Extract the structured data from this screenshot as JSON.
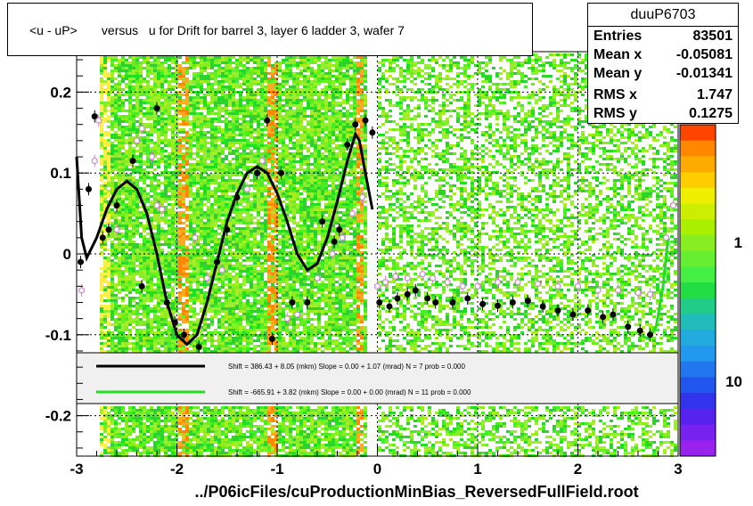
{
  "title": "<u - uP>       versus   u for Drift for barrel 3, layer 6 ladder 3, wafer 7",
  "stats": {
    "name": "duuP6703",
    "rows": [
      {
        "label": "Entries",
        "value": "83501"
      },
      {
        "label": "Mean x",
        "value": "-0.05081"
      },
      {
        "label": "Mean y",
        "value": "-0.01341"
      },
      {
        "label": "RMS x",
        "value": "1.747"
      },
      {
        "label": "RMS y",
        "value": "0.1275"
      }
    ]
  },
  "footer": "../P06icFiles/cuProductionMinBias_ReversedFullField.root",
  "chart_data": {
    "type": "scatter",
    "xlim": [
      -3,
      3
    ],
    "ylim": [
      -0.25,
      0.25
    ],
    "xticks": [
      "-3",
      "-2",
      "-1",
      "0",
      "1",
      "2",
      "3"
    ],
    "yticks": [
      "0.2",
      "0.1",
      "0",
      "-0.1",
      "-0.2"
    ],
    "palette_labels": [
      "1",
      "10"
    ],
    "legend": [
      {
        "text": "Shift =   386.43 + 8.05 (mkm) Slope =     0.00 + 1.07 (mrad)  N = 7 prob = 0.000",
        "color": "#000000"
      },
      {
        "text": "Shift =  -665.91 + 3.82 (mkm) Slope =     0.00 + 0.00 (mrad)  N = 11 prob = 0.000",
        "color": "#22dd22"
      }
    ],
    "series": [
      {
        "marker": "filled-circle",
        "color": "#000000",
        "points": [
          [
            -2.96,
            -0.01
          ],
          [
            -2.88,
            0.08
          ],
          [
            -2.82,
            0.17
          ],
          [
            -2.74,
            0.02
          ],
          [
            -2.68,
            0.03
          ],
          [
            -2.6,
            0.06
          ],
          [
            -2.44,
            0.115
          ],
          [
            -2.35,
            -0.04
          ],
          [
            -2.2,
            0.18
          ],
          [
            -2.1,
            -0.06
          ],
          [
            -2.02,
            -0.085
          ],
          [
            -1.93,
            -0.1
          ],
          [
            -1.78,
            -0.115
          ],
          [
            -1.6,
            -0.01
          ],
          [
            -1.5,
            0.03
          ],
          [
            -1.4,
            0.07
          ],
          [
            -1.2,
            0.1
          ],
          [
            -1.1,
            0.165
          ],
          [
            -1.05,
            -0.105
          ],
          [
            -0.96,
            0.1
          ],
          [
            -0.85,
            -0.06
          ],
          [
            -0.7,
            -0.06
          ],
          [
            -0.55,
            0.04
          ],
          [
            -0.43,
            0.015
          ],
          [
            -0.38,
            0.03
          ],
          [
            -0.3,
            0.135
          ],
          [
            -0.22,
            0.16
          ],
          [
            -0.12,
            0.165
          ],
          [
            -0.05,
            0.15
          ],
          [
            0.02,
            -0.06
          ],
          [
            0.12,
            -0.065
          ],
          [
            0.2,
            -0.055
          ],
          [
            0.3,
            -0.05
          ],
          [
            0.38,
            -0.045
          ],
          [
            0.5,
            -0.055
          ],
          [
            0.58,
            -0.06
          ],
          [
            0.75,
            -0.06
          ],
          [
            0.9,
            -0.055
          ],
          [
            1.05,
            -0.062
          ],
          [
            1.2,
            -0.064
          ],
          [
            1.35,
            -0.06
          ],
          [
            1.5,
            -0.058
          ],
          [
            1.65,
            -0.065
          ],
          [
            1.8,
            -0.07
          ],
          [
            1.95,
            -0.075
          ],
          [
            2.1,
            -0.07
          ],
          [
            2.25,
            -0.078
          ],
          [
            2.35,
            -0.075
          ],
          [
            2.5,
            -0.09
          ],
          [
            2.62,
            -0.095
          ],
          [
            2.72,
            -0.1
          ]
        ]
      },
      {
        "marker": "open-circle",
        "color": "#cc88cc",
        "points": [
          [
            -2.95,
            -0.045
          ],
          [
            -2.82,
            0.115
          ],
          [
            -2.78,
            0.165
          ],
          [
            -2.6,
            0.03
          ],
          [
            -2.4,
            0.14
          ],
          [
            -2.35,
            0.155
          ],
          [
            -2.25,
            0.12
          ],
          [
            -2.2,
            0.06
          ],
          [
            -2.15,
            0.055
          ],
          [
            -1.82,
            0.02
          ],
          [
            -1.7,
            -0.03
          ],
          [
            -1.55,
            -0.02
          ],
          [
            -1.3,
            0.08
          ],
          [
            -1.15,
            0.115
          ],
          [
            -0.9,
            -0.08
          ],
          [
            -0.8,
            -0.075
          ],
          [
            -0.6,
            -0.03
          ],
          [
            -0.45,
            -0.0
          ],
          [
            -0.35,
            0.02
          ],
          [
            -0.25,
            0.05
          ],
          [
            -0.15,
            0.07
          ],
          [
            0.0,
            -0.04
          ],
          [
            0.08,
            -0.035
          ],
          [
            0.18,
            -0.028
          ],
          [
            0.3,
            -0.03
          ],
          [
            0.45,
            -0.025
          ],
          [
            0.55,
            -0.03
          ],
          [
            0.7,
            -0.035
          ],
          [
            0.85,
            -0.04
          ],
          [
            1.0,
            -0.04
          ],
          [
            1.2,
            -0.035
          ],
          [
            1.4,
            -0.035
          ],
          [
            1.6,
            -0.037
          ],
          [
            1.8,
            -0.04
          ],
          [
            2.0,
            -0.04
          ],
          [
            2.2,
            -0.045
          ],
          [
            2.4,
            -0.045
          ],
          [
            2.6,
            -0.048
          ],
          [
            2.72,
            -0.05
          ],
          [
            2.88,
            0.02
          ],
          [
            2.95,
            0.06
          ]
        ]
      }
    ],
    "fits": [
      {
        "name": "black-fit",
        "color": "#000000",
        "points": [
          [
            -3.0,
            0.12
          ],
          [
            -2.95,
            0.02
          ],
          [
            -2.9,
            -0.005
          ],
          [
            -2.8,
            0.02
          ],
          [
            -2.7,
            0.055
          ],
          [
            -2.6,
            0.08
          ],
          [
            -2.5,
            0.09
          ],
          [
            -2.4,
            0.08
          ],
          [
            -2.3,
            0.05
          ],
          [
            -2.2,
            0.0
          ],
          [
            -2.1,
            -0.06
          ],
          [
            -2.0,
            -0.1
          ],
          [
            -1.9,
            -0.112
          ],
          [
            -1.8,
            -0.1
          ],
          [
            -1.7,
            -0.06
          ],
          [
            -1.6,
            -0.01
          ],
          [
            -1.5,
            0.04
          ],
          [
            -1.4,
            0.075
          ],
          [
            -1.3,
            0.1
          ],
          [
            -1.2,
            0.108
          ],
          [
            -1.1,
            0.1
          ],
          [
            -1.0,
            0.075
          ],
          [
            -0.9,
            0.04
          ],
          [
            -0.8,
            0.0
          ],
          [
            -0.7,
            -0.02
          ],
          [
            -0.6,
            -0.012
          ],
          [
            -0.5,
            0.02
          ],
          [
            -0.4,
            0.065
          ],
          [
            -0.3,
            0.115
          ],
          [
            -0.22,
            0.148
          ],
          [
            -0.18,
            0.14
          ],
          [
            -0.12,
            0.1
          ],
          [
            -0.05,
            0.055
          ]
        ]
      },
      {
        "name": "green-fit",
        "color": "#22dd22",
        "points": [
          [
            2.62,
            -0.1
          ],
          [
            2.7,
            -0.105
          ],
          [
            2.78,
            -0.09
          ],
          [
            2.85,
            -0.04
          ],
          [
            2.9,
            0.02
          ]
        ]
      }
    ]
  }
}
